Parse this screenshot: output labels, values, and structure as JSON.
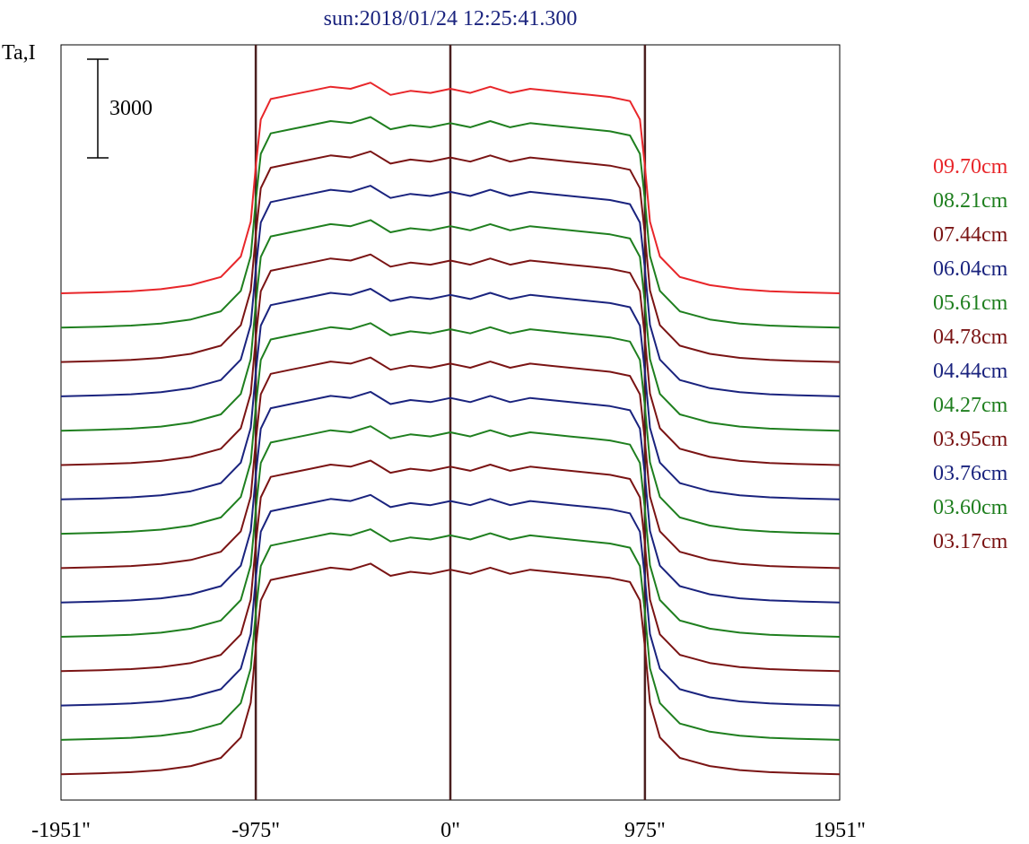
{
  "chart_data": {
    "type": "line",
    "title": "sun:2018/01/24 12:25:41.300",
    "ylabel": "Ta,I",
    "xlabel": "",
    "xlim": [
      -1951,
      1951
    ],
    "x_ticks": [
      {
        "value": -1951,
        "label": "-1951\""
      },
      {
        "value": -975,
        "label": "-975\""
      },
      {
        "value": 0,
        "label": "0\""
      },
      {
        "value": 975,
        "label": "975\""
      },
      {
        "value": 1951,
        "label": "1951\""
      }
    ],
    "vertical_lines": [
      -975,
      0,
      975
    ],
    "scale_bar": {
      "value": 3000,
      "label": "3000"
    },
    "grid": false,
    "legend_position": "right",
    "profile_shape": {
      "x": [
        -1951,
        -1750,
        -1600,
        -1450,
        -1300,
        -1150,
        -1050,
        -1000,
        -975,
        -950,
        -900,
        -800,
        -700,
        -600,
        -500,
        -400,
        -300,
        -200,
        -100,
        0,
        100,
        200,
        300,
        400,
        500,
        600,
        700,
        800,
        900,
        950,
        975,
        1000,
        1050,
        1150,
        1300,
        1450,
        1600,
        1750,
        1951
      ],
      "y": [
        0,
        0.005,
        0.01,
        0.02,
        0.04,
        0.08,
        0.18,
        0.35,
        0.62,
        0.85,
        0.95,
        0.97,
        0.99,
        1.01,
        1.0,
        1.03,
        0.97,
        0.99,
        0.98,
        1.0,
        0.98,
        1.01,
        0.98,
        1.0,
        0.99,
        0.98,
        0.97,
        0.96,
        0.94,
        0.85,
        0.62,
        0.35,
        0.18,
        0.08,
        0.04,
        0.02,
        0.01,
        0.005,
        0
      ]
    },
    "series": [
      {
        "name": "09.70cm",
        "color": "#e8262a"
      },
      {
        "name": "08.21cm",
        "color": "#1f7f1f"
      },
      {
        "name": "07.44cm",
        "color": "#7a1414"
      },
      {
        "name": "06.04cm",
        "color": "#1a237e"
      },
      {
        "name": "05.61cm",
        "color": "#1f7f1f"
      },
      {
        "name": "04.78cm",
        "color": "#7a1414"
      },
      {
        "name": "04.44cm",
        "color": "#1a237e"
      },
      {
        "name": "04.27cm",
        "color": "#1f7f1f"
      },
      {
        "name": "03.95cm",
        "color": "#7a1414"
      },
      {
        "name": "03.76cm",
        "color": "#1a237e"
      },
      {
        "name": "03.60cm",
        "color": "#1f7f1f"
      },
      {
        "name": "03.17cm",
        "color": "#7a1414"
      },
      {
        "name": "",
        "color": "#1a237e"
      },
      {
        "name": "",
        "color": "#1f7f1f"
      },
      {
        "name": "",
        "color": "#7a1414"
      }
    ]
  }
}
